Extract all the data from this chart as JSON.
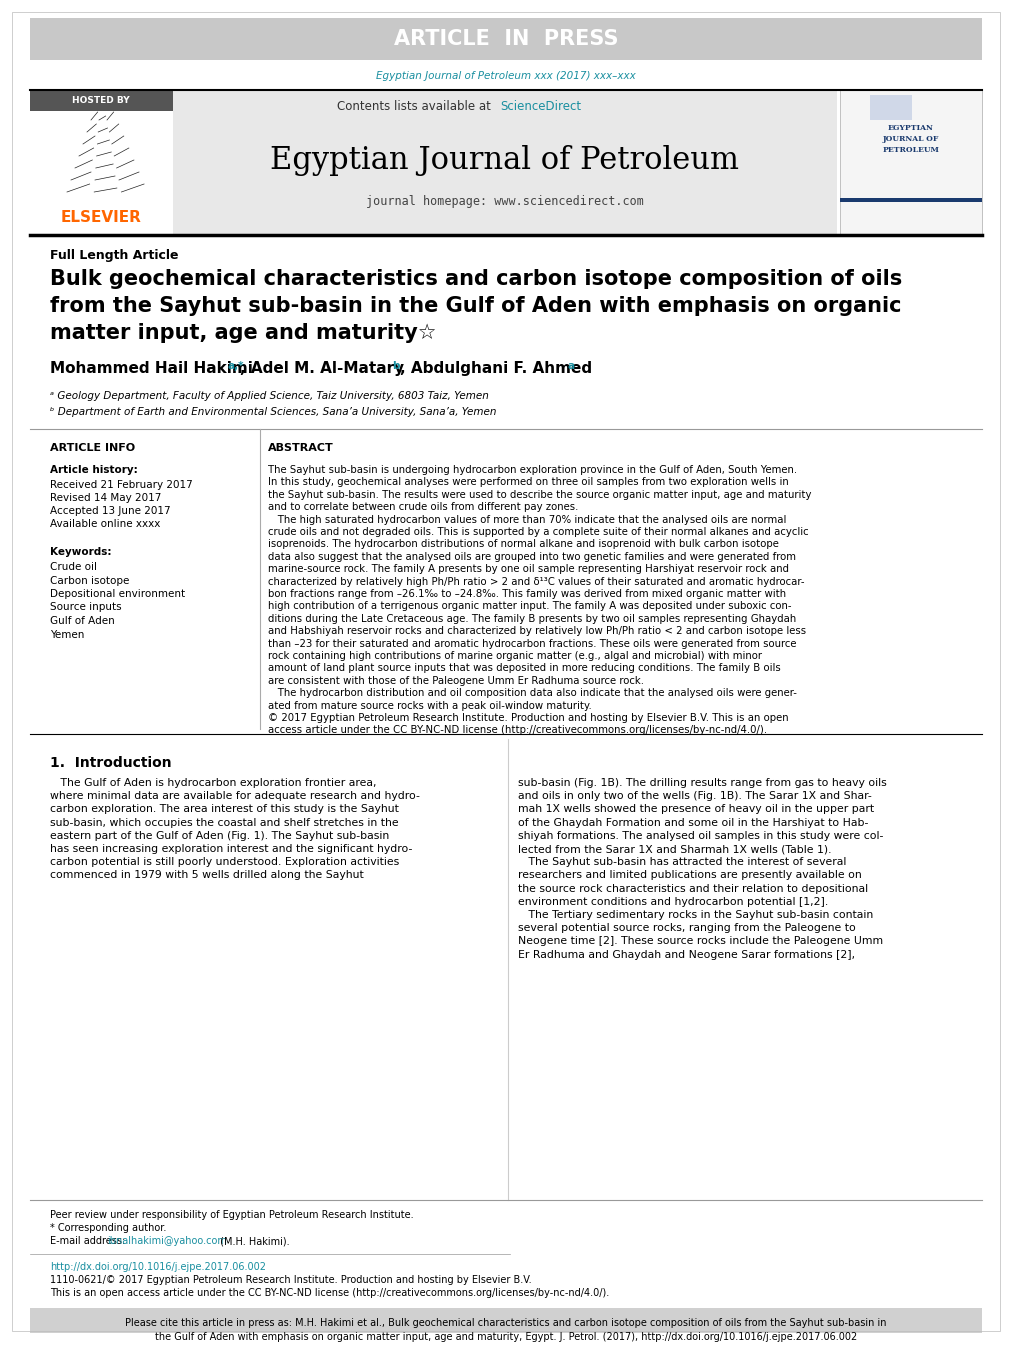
{
  "article_in_press_text": "ARTICLE  IN  PRESS",
  "article_in_press_bg": "#c8c8c8",
  "article_in_press_text_color": "#ffffff",
  "journal_ref_text": "Egyptian Journal of Petroleum xxx (2017) xxx–xxx",
  "journal_ref_color": "#1a8fa0",
  "hosted_by_text": "HOSTED BY",
  "hosted_by_bg": "#555555",
  "hosted_by_text_color": "#ffffff",
  "contents_text": "Contents lists available at ",
  "sciencedirect_text": "ScienceDirect",
  "sciencedirect_color": "#1a8fa0",
  "journal_name": "Egyptian Journal of Petroleum",
  "journal_homepage": "journal homepage: www.sciencedirect.com",
  "journal_header_bg": "#e8e8e8",
  "elsevier_color": "#ff6600",
  "elsevier_text": "ELSEVIER",
  "article_type": "Full Length Article",
  "paper_title_line1": "Bulk geochemical characteristics and carbon isotope composition of oils",
  "paper_title_line2": "from the Sayhut sub-basin in the Gulf of Aden with emphasis on organic",
  "paper_title_line3": "matter input, age and maturity☆",
  "affil_a": "ᵃ Geology Department, Faculty of Applied Science, Taiz University, 6803 Taiz, Yemen",
  "affil_b": "ᵇ Department of Earth and Environmental Sciences, Sana’a University, Sana’a, Yemen",
  "article_info_title": "ARTICLE INFO",
  "article_history_title": "Article history:",
  "received": "Received 21 February 2017",
  "revised": "Revised 14 May 2017",
  "accepted": "Accepted 13 June 2017",
  "available": "Available online xxxx",
  "keywords_title": "Keywords:",
  "keywords": [
    "Crude oil",
    "Carbon isotope",
    "Depositional environment",
    "Source inputs",
    "Gulf of Aden",
    "Yemen"
  ],
  "abstract_title": "ABSTRACT",
  "abstract_lines": [
    "The Sayhut sub-basin is undergoing hydrocarbon exploration province in the Gulf of Aden, South Yemen.",
    "In this study, geochemical analyses were performed on three oil samples from two exploration wells in",
    "the Sayhut sub-basin. The results were used to describe the source organic matter input, age and maturity",
    "and to correlate between crude oils from different pay zones.",
    "   The high saturated hydrocarbon values of more than 70% indicate that the analysed oils are normal",
    "crude oils and not degraded oils. This is supported by a complete suite of their normal alkanes and acyclic",
    "isoprenoids. The hydrocarbon distributions of normal alkane and isoprenoid with bulk carbon isotope",
    "data also suggest that the analysed oils are grouped into two genetic families and were generated from",
    "marine-source rock. The family A presents by one oil sample representing Harshiyat reservoir rock and",
    "characterized by relatively high Ph/Ph ratio > 2 and δ¹³C values of their saturated and aromatic hydrocar-",
    "bon fractions range from –26.1‰ to –24.8‰. This family was derived from mixed organic matter with",
    "high contribution of a terrigenous organic matter input. The family A was deposited under suboxic con-",
    "ditions during the Late Cretaceous age. The family B presents by two oil samples representing Ghaydah",
    "and Habshiyah reservoir rocks and characterized by relatively low Ph/Ph ratio < 2 and carbon isotope less",
    "than –23 for their saturated and aromatic hydrocarbon fractions. These oils were generated from source",
    "rock containing high contributions of marine organic matter (e.g., algal and microbial) with minor",
    "amount of land plant source inputs that was deposited in more reducing conditions. The family B oils",
    "are consistent with those of the Paleogene Umm Er Radhuma source rock.",
    "   The hydrocarbon distribution and oil composition data also indicate that the analysed oils were gener-",
    "ated from mature source rocks with a peak oil-window maturity.",
    "© 2017 Egyptian Petroleum Research Institute. Production and hosting by Elsevier B.V. This is an open",
    "access article under the CC BY-NC-ND license (http://creativecommons.org/licenses/by-nc-nd/4.0/)."
  ],
  "intro_heading": "1.  Introduction",
  "intro_lines_col1": [
    "   The Gulf of Aden is hydrocarbon exploration frontier area,",
    "where minimal data are available for adequate research and hydro-",
    "carbon exploration. The area interest of this study is the Sayhut",
    "sub-basin, which occupies the coastal and shelf stretches in the",
    "eastern part of the Gulf of Aden (Fig. 1). The Sayhut sub-basin",
    "has seen increasing exploration interest and the significant hydro-",
    "carbon potential is still poorly understood. Exploration activities",
    "commenced in 1979 with 5 wells drilled along the Sayhut"
  ],
  "intro_lines_col2": [
    "sub-basin (Fig. 1B). The drilling results range from gas to heavy oils",
    "and oils in only two of the wells (Fig. 1B). The Sarar 1X and Shar-",
    "mah 1X wells showed the presence of heavy oil in the upper part",
    "of the Ghaydah Formation and some oil in the Harshiyat to Hab-",
    "shiyah formations. The analysed oil samples in this study were col-",
    "lected from the Sarar 1X and Sharmah 1X wells (Table 1).",
    "   The Sayhut sub-basin has attracted the interest of several",
    "researchers and limited publications are presently available on",
    "the source rock characteristics and their relation to depositional",
    "environment conditions and hydrocarbon potential [1,2].",
    "   The Tertiary sedimentary rocks in the Sayhut sub-basin contain",
    "several potential source rocks, ranging from the Paleogene to",
    "Neogene time [2]. These source rocks include the Paleogene Umm",
    "Er Radhuma and Ghaydah and Neogene Sarar formations [2],"
  ],
  "peer_review_text": "Peer review under responsibility of Egyptian Petroleum Research Institute.",
  "corresponding_author": "* Corresponding author.",
  "email_label": "E-mail address: ",
  "email": "ibnalhakimi@yahoo.com",
  "email_suffix": " (M.H. Hakimi).",
  "doi_text": "http://dx.doi.org/10.1016/j.ejpe.2017.06.002",
  "copyright_bottom": "1110-0621/© 2017 Egyptian Petroleum Research Institute. Production and hosting by Elsevier B.V.",
  "open_access_text": "This is an open access article under the CC BY-NC-ND license (http://creativecommons.org/licenses/by-nc-nd/4.0/).",
  "citation_box_text1": "Please cite this article in press as: M.H. Hakimi et al., Bulk geochemical characteristics and carbon isotope composition of oils from the Sayhut sub-basin in",
  "citation_box_text2": "the Gulf of Aden with emphasis on organic matter input, age and maturity, Egypt. J. Petrol. (2017), http://dx.doi.org/10.1016/j.ejpe.2017.06.002",
  "citation_box_bg": "#d0d0d0",
  "teal": "#1a8fa0",
  "black": "#000000",
  "white": "#ffffff",
  "gray_banner": "#c8c8c8",
  "gray_header": "#e8e8e8",
  "gray_mid": "#aaaaaa",
  "gray_light": "#999999"
}
